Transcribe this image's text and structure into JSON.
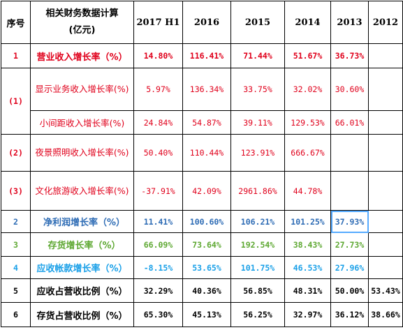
{
  "header": {
    "seq": "序号",
    "item_line1": "相关财务数据计算",
    "item_line2": "(亿元)",
    "years": [
      "2017 H1",
      "2016",
      "2015",
      "2014",
      "2013",
      "2012"
    ]
  },
  "rows": {
    "r1": {
      "seq": "1",
      "label": "营业收入增长率（%）",
      "values": [
        "14.80%",
        "116.41%",
        "71.44%",
        "51.67%",
        "36.73%",
        ""
      ]
    },
    "s1": {
      "seq": "(1)"
    },
    "r1a": {
      "label": "显示业务收入增长率(%)",
      "values": [
        "5.97%",
        "136.34%",
        "33.75%",
        "32.02%",
        "30.60%",
        ""
      ]
    },
    "r1b": {
      "label": "小间距收入增长率(%)",
      "values": [
        "24.84%",
        "54.87%",
        "39.11%",
        "129.53%",
        "66.01%",
        ""
      ]
    },
    "r2a": {
      "seq": "(2)",
      "label": "夜景照明收入增长率(%)",
      "values": [
        "50.40%",
        "110.44%",
        "123.91%",
        "666.67%",
        "",
        ""
      ]
    },
    "r3a": {
      "seq": "(3)",
      "label": "文化旅游收入增长率(%)",
      "values": [
        "-37.91%",
        "42.09%",
        "2961.86%",
        "44.78%",
        "",
        ""
      ]
    },
    "r2": {
      "seq": "2",
      "label": "净利润增长率（%）",
      "values": [
        "11.41%",
        "100.60%",
        "106.21%",
        "101.25%",
        "37.93%",
        ""
      ]
    },
    "r3": {
      "seq": "3",
      "label": "存货增长率（%）",
      "values": [
        "66.09%",
        "73.64%",
        "192.54%",
        "38.43%",
        "27.73%",
        ""
      ]
    },
    "r4": {
      "seq": "4",
      "label": "应收帐款增长率（%）",
      "values": [
        "-8.15%",
        "53.65%",
        "101.75%",
        "46.53%",
        "27.96%",
        ""
      ]
    },
    "r5": {
      "seq": "5",
      "label": "应收占营收比例（%）",
      "values": [
        "32.29%",
        "40.36%",
        "56.85%",
        "48.31%",
        "50.00%",
        "53.43%"
      ]
    },
    "r6": {
      "seq": "6",
      "label": "存货占营收比例（%）",
      "values": [
        "65.30%",
        "45.13%",
        "56.25%",
        "32.97%",
        "36.12%",
        "38.66%"
      ]
    }
  },
  "colors": {
    "red": "#e0001b",
    "blue": "#2e6cb5",
    "green": "#5ea832",
    "cyan": "#1aa0e8",
    "black": "#000000",
    "selection": "#55aaff"
  }
}
